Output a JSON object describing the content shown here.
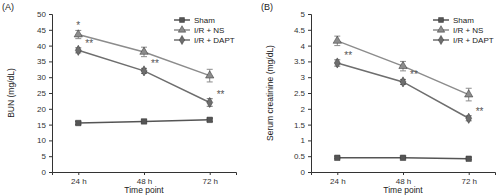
{
  "chart_data": [
    {
      "type": "line",
      "title": "(A)",
      "x_label": "Time point",
      "y_label": "BUN (mg/dL)",
      "categories": [
        "24 h",
        "48 h",
        "72 h"
      ],
      "ylim": [
        0,
        50
      ],
      "yticks": [
        0,
        5,
        10,
        15,
        20,
        25,
        30,
        35,
        40,
        45,
        50
      ],
      "legend": "upper right",
      "series": [
        {
          "name": "Sham",
          "color": "#555555",
          "marker": "square",
          "values": [
            15.5,
            16,
            16.5
          ],
          "errors": [
            0.5,
            0.5,
            0.5
          ]
        },
        {
          "name": "I/R + NS",
          "color": "#8c8c8c",
          "marker": "triangle",
          "values": [
            43.5,
            38,
            30.5
          ],
          "errors": [
            1.3,
            1.5,
            2
          ],
          "annotations": [
            "*",
            null,
            null
          ]
        },
        {
          "name": "I/R + DAPT",
          "color": "#6e6e6e",
          "marker": "diamond",
          "values": [
            38.5,
            32,
            22
          ],
          "errors": [
            0.8,
            0.8,
            1.2
          ],
          "annotations": [
            "**",
            "**",
            "**"
          ]
        }
      ]
    },
    {
      "type": "line",
      "title": "(B)",
      "x_label": "Time point",
      "y_label": "Serum creatinine (mg/dL)",
      "categories": [
        "24 h",
        "48 h",
        "72 h"
      ],
      "ylim": [
        0,
        5
      ],
      "yticks": [
        0,
        0.5,
        1,
        1.5,
        2,
        2.5,
        3,
        3.5,
        4,
        4.5,
        5
      ],
      "legend": "upper right",
      "series": [
        {
          "name": "Sham",
          "color": "#555555",
          "marker": "square",
          "values": [
            0.45,
            0.45,
            0.42
          ],
          "errors": [
            0.03,
            0.03,
            0.03
          ]
        },
        {
          "name": "I/R + NS",
          "color": "#8c8c8c",
          "marker": "triangle",
          "values": [
            4.15,
            3.35,
            2.45
          ],
          "errors": [
            0.15,
            0.15,
            0.2
          ]
        },
        {
          "name": "I/R + DAPT",
          "color": "#6e6e6e",
          "marker": "diamond",
          "values": [
            3.45,
            2.85,
            1.7
          ],
          "errors": [
            0.1,
            0.08,
            0.08
          ],
          "annotations": [
            "**",
            "**",
            "**"
          ]
        }
      ]
    }
  ]
}
